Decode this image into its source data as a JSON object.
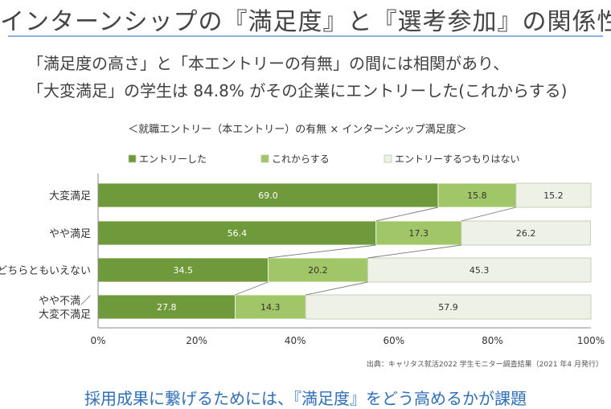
{
  "page": {
    "title": "インターンシップの『満足度』と『選考参加』の関係性",
    "lead_line1": "「満足度の高さ」と「本エントリーの有無」の間には相関があり、",
    "lead_line2": "「大変満足」の学生は 84.8% がその企業にエントリーした(これからする)",
    "footer": "採用成果に繋げるためには、『満足度』をどう高めるかが課題"
  },
  "colors": {
    "entered": "#6e9a3c",
    "planned": "#a0c667",
    "none": "#eef2e6",
    "bar_border": "#b9c6a8",
    "connector": "#7a7a7a"
  },
  "chart_data": {
    "type": "bar",
    "orientation": "horizontal",
    "stacked": true,
    "percent_stacked": true,
    "title": "＜就職エントリー（本エントリー）の有無 × インターンシップ満足度＞",
    "categories": [
      "大変満足",
      "やや満足",
      "どちらともいえない",
      "やや不満／\n大変不満足"
    ],
    "series": [
      {
        "name": "エントリーした",
        "values": [
          69.0,
          56.4,
          34.5,
          27.8
        ],
        "color": "#6e9a3c"
      },
      {
        "name": "これからする",
        "values": [
          15.8,
          17.3,
          20.2,
          14.3
        ],
        "color": "#a0c667"
      },
      {
        "name": "エントリーするつもりはない",
        "values": [
          15.2,
          26.2,
          45.3,
          57.9
        ],
        "color": "#eef2e6"
      }
    ],
    "data_labels": [
      [
        "69.0",
        "56.4",
        "34.5",
        "27.8"
      ],
      [
        "15.8",
        "17.3",
        "20.2",
        "14.3"
      ],
      [
        "15.2",
        "26.2",
        "45.3",
        "57.9"
      ]
    ],
    "xlim": [
      0,
      100
    ],
    "xticks": [
      "0%",
      "20%",
      "40%",
      "60%",
      "80%",
      "100%"
    ],
    "xlabel": "",
    "ylabel": "",
    "legend_position": "top",
    "grid": false,
    "series_lines": true,
    "source": "出典：キャリタス就活2022 学生モニター調査結果（2021 年4 月発行）"
  }
}
